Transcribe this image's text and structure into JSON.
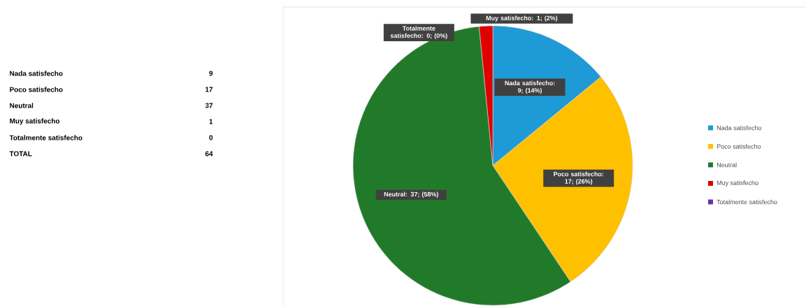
{
  "chart_data": {
    "type": "pie",
    "categories": [
      "Nada satisfecho",
      "Poco satisfecho",
      "Neutral",
      "Muy satisfecho",
      "Totalmente satisfecho"
    ],
    "values": [
      9,
      17,
      37,
      1,
      0
    ],
    "colors": [
      "#1e9ad6",
      "#ffc000",
      "#217a2a",
      "#e00000",
      "#7030a0"
    ],
    "value_labels": [
      "Nada satisfecho: 9; (14%)",
      "Poco satisfecho: 17; (26%)",
      "Neutral: 37; (58%)",
      "Muy satisfecho: 1; (2%)",
      "Totalmente satisfecho: 0; (0%)"
    ],
    "data_labels": true,
    "annotations": [
      "9",
      "17",
      "37",
      "1",
      "0",
      "TOTAL",
      "64"
    ],
    "legend": "right"
  }
}
